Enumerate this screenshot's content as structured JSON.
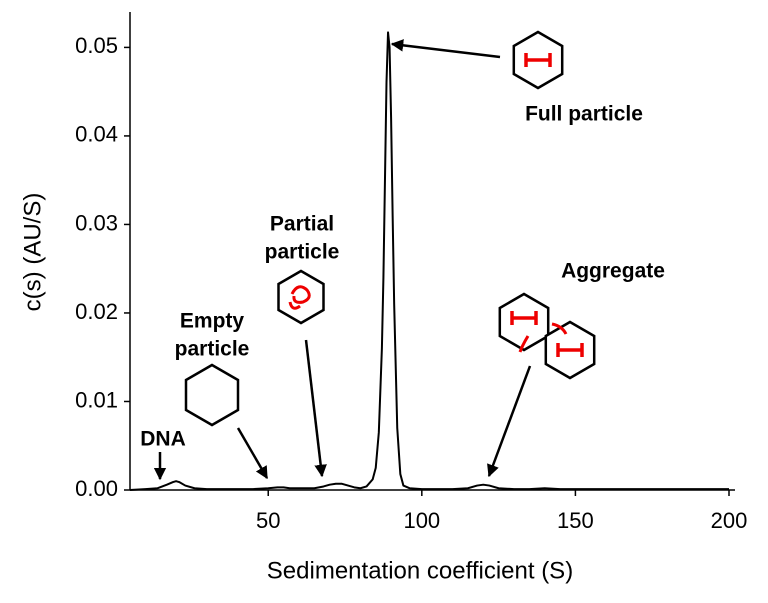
{
  "chart_data": {
    "type": "line",
    "xlabel": "Sedimentation coefficient (S)",
    "ylabel": "c(s) (AU/S)",
    "color": "#000000",
    "xlim": [
      5,
      200
    ],
    "xticks": [
      50,
      100,
      150,
      200
    ],
    "ylim": [
      0,
      0.054
    ],
    "yticks": [
      {
        "value": 0,
        "label": "0.00"
      },
      {
        "value": 0.01,
        "label": "0.01"
      },
      {
        "value": 0.02,
        "label": "0.02"
      },
      {
        "value": 0.03,
        "label": "0.03"
      },
      {
        "value": 0.04,
        "label": "0.04"
      },
      {
        "value": 0.05,
        "label": "0.05"
      }
    ],
    "x": [
      5,
      10,
      14,
      17,
      19,
      20,
      21,
      23,
      26,
      30,
      35,
      40,
      45,
      50,
      53,
      55,
      57,
      60,
      65,
      68,
      70,
      72,
      73,
      74,
      76,
      78,
      80,
      82,
      84,
      85,
      86,
      87,
      87.5,
      88,
      88.5,
      89,
      89.5,
      90,
      90.5,
      91,
      92,
      93,
      94,
      96,
      100,
      105,
      110,
      115,
      118,
      120,
      122,
      125,
      130,
      135,
      140,
      145,
      150,
      160,
      170,
      180,
      190,
      200
    ],
    "values": [
      0,
      0.0001,
      0.0002,
      0.0006,
      0.0009,
      0.001,
      0.0009,
      0.0005,
      0.0002,
      0.0001,
      0.0001,
      0.0001,
      0.0001,
      0.0002,
      0.0003,
      0.0003,
      0.0002,
      0.0002,
      0.0002,
      0.0004,
      0.0006,
      0.0007,
      0.0007,
      0.0007,
      0.0005,
      0.0003,
      0.0002,
      0.0004,
      0.0012,
      0.0025,
      0.0065,
      0.016,
      0.024,
      0.035,
      0.046,
      0.0517,
      0.05,
      0.042,
      0.031,
      0.021,
      0.007,
      0.0018,
      0.0005,
      0.0002,
      0.0001,
      0.0001,
      0.0001,
      0.0002,
      0.0005,
      0.0006,
      0.0005,
      0.0002,
      0.0001,
      0.0001,
      0.0002,
      0.0001,
      0.0001,
      0.0001,
      0.0001,
      0.0001,
      0.0001,
      0.0001
    ],
    "annotations": [
      [
        "DNA"
      ],
      [
        "Empty",
        "particle"
      ],
      [
        "Partial",
        "particle"
      ],
      [
        "Full particle"
      ],
      [
        "Aggregate"
      ]
    ]
  }
}
